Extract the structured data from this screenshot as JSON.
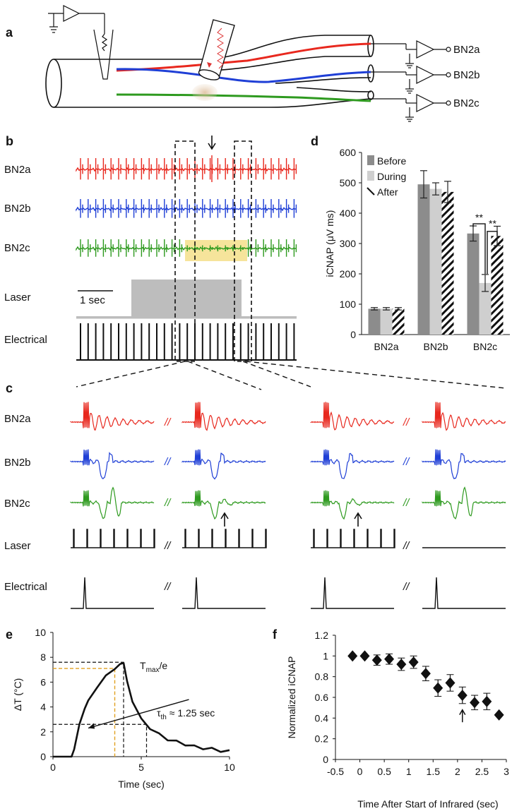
{
  "panels": {
    "a": "a",
    "b": "b",
    "c": "c",
    "d": "d",
    "e": "e",
    "f": "f"
  },
  "panel_a": {
    "outputs": [
      "BN2a",
      "BN2b",
      "BN2c"
    ]
  },
  "panel_b": {
    "rows": [
      "BN2a",
      "BN2b",
      "BN2c",
      "Laser",
      "Electrical"
    ],
    "scale_bar": "1 sec",
    "colors": {
      "BN2a": "#e8281e",
      "BN2b": "#1f3fd6",
      "BN2c": "#2e9a1f",
      "highlight": "#f4df8a"
    }
  },
  "panel_c": {
    "rows": [
      "BN2a",
      "BN2b",
      "BN2c",
      "Laser",
      "Electrical"
    ],
    "break_mark": "//"
  },
  "chart_data": [
    {
      "id": "d",
      "type": "bar",
      "title": "",
      "xlabel": "",
      "ylabel": "iCNAP (μV ms)",
      "ylim": [
        0,
        600
      ],
      "yticks": [
        "0",
        "100",
        "200",
        "300",
        "400",
        "500",
        "600"
      ],
      "categories": [
        "BN2a",
        "BN2b",
        "BN2c"
      ],
      "series": [
        {
          "name": "Before",
          "values": [
            85,
            495,
            333
          ],
          "errors": [
            4,
            45,
            25
          ],
          "color": "#8c8c8c"
        },
        {
          "name": "During",
          "values": [
            85,
            480,
            170
          ],
          "errors": [
            4,
            20,
            28
          ],
          "color": "#cfcfcf"
        },
        {
          "name": "After",
          "values": [
            85,
            470,
            325
          ],
          "errors": [
            4,
            35,
            32
          ],
          "color": "hatch"
        }
      ],
      "significance": [
        "**",
        "**"
      ]
    },
    {
      "id": "e",
      "type": "line",
      "xlabel": "Time (sec)",
      "ylabel": "ΔT (°C)",
      "xlim": [
        0,
        10
      ],
      "ylim": [
        0,
        10
      ],
      "xticks": [
        "0",
        "5",
        "10"
      ],
      "yticks": [
        "0",
        "2",
        "4",
        "6",
        "8",
        "10"
      ],
      "x": [
        0,
        1.05,
        1.2,
        1.5,
        1.8,
        2.0,
        2.5,
        3.0,
        3.5,
        3.8,
        4.0,
        4.2,
        4.5,
        5.0,
        5.5,
        6.0,
        6.5,
        7.0,
        7.5,
        8.0,
        8.5,
        9.0,
        9.5,
        10.0
      ],
      "y": [
        0,
        0,
        0.6,
        2.6,
        3.9,
        4.5,
        5.6,
        6.5,
        7.1,
        7.4,
        7.6,
        6.0,
        4.5,
        3.0,
        2.3,
        1.8,
        1.4,
        1.2,
        1.0,
        0.8,
        0.7,
        0.6,
        0.5,
        0.4
      ],
      "annotation_tmax": "T",
      "annotation_tmax_sub": "max",
      "annotation_tmax_rest": "/e",
      "annotation_tau": "τ",
      "annotation_tau_sub": "th",
      "annotation_tau_rest": " ≈ 1.25 sec"
    },
    {
      "id": "f",
      "type": "scatter",
      "xlabel": "Time After Start of Infrared (sec)",
      "ylabel": "Normalized iCNAP",
      "xlim": [
        -0.5,
        3
      ],
      "ylim": [
        0,
        1.2
      ],
      "xticks": [
        "-0.5",
        "0",
        "0.5",
        "1",
        "1.5",
        "2",
        "2.5",
        "3"
      ],
      "yticks": [
        "0",
        "0.2",
        "0.4",
        "0.6",
        "0.8",
        "1",
        "1.2"
      ],
      "x": [
        -0.15,
        0.1,
        0.35,
        0.6,
        0.85,
        1.1,
        1.35,
        1.6,
        1.85,
        2.1,
        2.35,
        2.6,
        2.85
      ],
      "y": [
        1.0,
        1.0,
        0.96,
        0.97,
        0.92,
        0.94,
        0.83,
        0.69,
        0.74,
        0.62,
        0.55,
        0.56,
        0.43
      ],
      "errors": [
        0,
        0,
        0.05,
        0.05,
        0.06,
        0.06,
        0.07,
        0.08,
        0.08,
        0.08,
        0.07,
        0.08,
        0
      ]
    }
  ]
}
